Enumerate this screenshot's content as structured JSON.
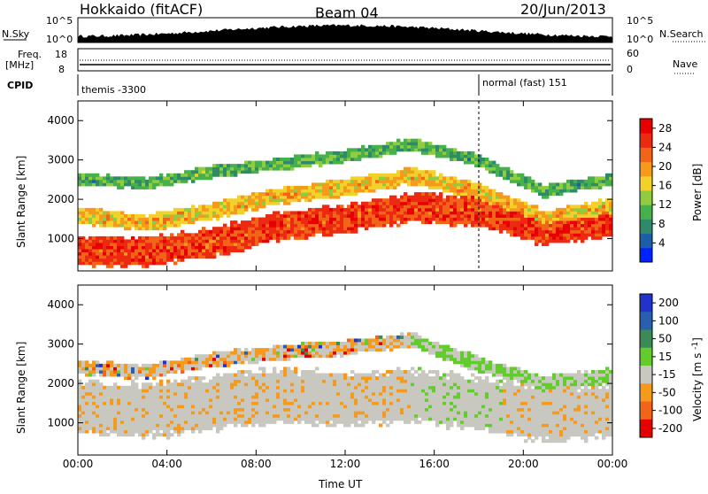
{
  "header": {
    "station": "Hokkaido (fitACF)",
    "beam": "Beam 04",
    "date": "20/Jun/2013"
  },
  "aux_panels": {
    "nsky_label": "N.Sky",
    "nsky_ticks": [
      "10^5",
      "10^0"
    ],
    "nsearch_label": "N.Search",
    "nsearch_ticks": [
      "10^5",
      "10^0"
    ],
    "freq_label_1": "Freq.",
    "freq_label_2": "[MHz]",
    "freq_ticks": [
      "18",
      "8"
    ],
    "nave_label": "Nave",
    "nave_ticks": [
      "60",
      "0"
    ],
    "cpid_label": "CPID",
    "cpid_segments": [
      {
        "label": "themis -3300",
        "start_hour": 0
      },
      {
        "label": "normal (fast) 151",
        "start_hour": 18
      }
    ]
  },
  "chart_data": [
    {
      "type": "heatmap",
      "name": "power",
      "ylabel": "Slant Range [km]",
      "xlabel": "",
      "x_ticks": [
        "00:00",
        "04:00",
        "08:00",
        "12:00",
        "16:00",
        "20:00",
        "00:00"
      ],
      "xlim_hours": [
        0,
        24
      ],
      "ylim_km": [
        180,
        4500
      ],
      "y_ticks": [
        1000,
        2000,
        3000,
        4000
      ],
      "colorbar": {
        "label": "Power [dB]",
        "ticks": [
          4,
          8,
          12,
          16,
          20,
          24,
          28
        ],
        "range": [
          0,
          30
        ],
        "colors": [
          "#0022ff",
          "#1c5fa8",
          "#2f8a6a",
          "#47b04a",
          "#8fcc3f",
          "#f2d22a",
          "#f59a1c",
          "#f26418",
          "#ec2a12",
          "#e60000"
        ]
      },
      "bands": [
        {
          "t": [
            0,
            24
          ],
          "center_km": [
            700,
            650,
            900,
            1300,
            1500,
            1800,
            1700,
            1200,
            1400
          ],
          "width_km": 600,
          "level": 26
        },
        {
          "t": [
            0,
            24
          ],
          "center_km": [
            1600,
            1400,
            1700,
            2100,
            2300,
            2600,
            2200,
            1500,
            1800
          ],
          "width_km": 350,
          "level": 18
        },
        {
          "t": [
            0,
            24
          ],
          "center_km": [
            2500,
            2400,
            2700,
            2900,
            3100,
            3400,
            3000,
            2200,
            2500
          ],
          "width_km": 250,
          "level": 10
        }
      ]
    },
    {
      "type": "heatmap",
      "name": "velocity",
      "ylabel": "Slant Range [km]",
      "xlabel": "Time UT",
      "x_ticks": [
        "00:00",
        "04:00",
        "08:00",
        "12:00",
        "16:00",
        "20:00",
        "00:00"
      ],
      "xlim_hours": [
        0,
        24
      ],
      "ylim_km": [
        180,
        4500
      ],
      "y_ticks": [
        1000,
        2000,
        3000,
        4000
      ],
      "colorbar": {
        "label": "Velocity [m s^-1]",
        "ticks": [
          "200",
          "100",
          "50",
          "15",
          "-15",
          "-50",
          "-100",
          "-200"
        ],
        "colors": [
          "#2233cc",
          "#2a5fb0",
          "#3c8a55",
          "#62cc2c",
          "#c8c8c0",
          "#f59a1c",
          "#f26418",
          "#e60000"
        ]
      },
      "ground_scatter_color": "#c8c8c0",
      "bands": [
        {
          "t": [
            0,
            24
          ],
          "center_km": [
            1400,
            1300,
            1500,
            1700,
            1600,
            1700,
            1500,
            1200,
            1300
          ],
          "width_km": 1100,
          "level": 0
        },
        {
          "t": [
            0,
            24
          ],
          "center_km": [
            2400,
            2300,
            2600,
            2800,
            2900,
            3100,
            2500,
            2000,
            2200
          ],
          "width_km": 300,
          "level": 1
        }
      ]
    }
  ]
}
